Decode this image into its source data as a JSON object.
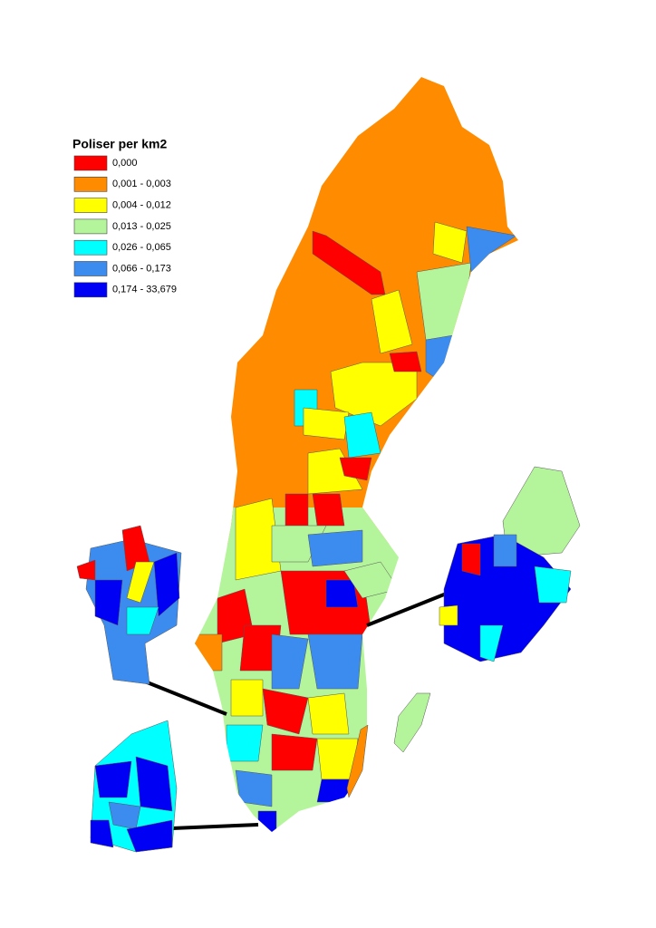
{
  "legend": {
    "title": "Poliser per km2",
    "items": [
      {
        "label": "0,000",
        "color": "#ff0000"
      },
      {
        "label": "0,001 - 0,003",
        "color": "#ff8c00"
      },
      {
        "label": "0,004 - 0,012",
        "color": "#ffff00"
      },
      {
        "label": "0,013 - 0,025",
        "color": "#b4f59b"
      },
      {
        "label": "0,026 - 0,065",
        "color": "#00ffff"
      },
      {
        "label": "0,066 - 0,173",
        "color": "#3c8cf0"
      },
      {
        "label": "0,174 - 33,679",
        "color": "#0000f5"
      }
    ]
  }
}
